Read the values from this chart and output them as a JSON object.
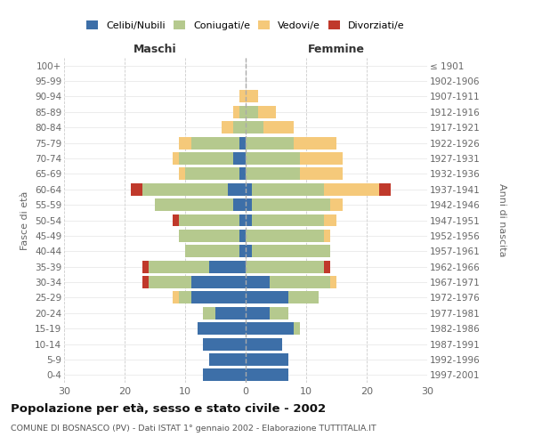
{
  "age_groups": [
    "0-4",
    "5-9",
    "10-14",
    "15-19",
    "20-24",
    "25-29",
    "30-34",
    "35-39",
    "40-44",
    "45-49",
    "50-54",
    "55-59",
    "60-64",
    "65-69",
    "70-74",
    "75-79",
    "80-84",
    "85-89",
    "90-94",
    "95-99",
    "100+"
  ],
  "birth_years": [
    "1997-2001",
    "1992-1996",
    "1987-1991",
    "1982-1986",
    "1977-1981",
    "1972-1976",
    "1967-1971",
    "1962-1966",
    "1957-1961",
    "1952-1956",
    "1947-1951",
    "1942-1946",
    "1937-1941",
    "1932-1936",
    "1927-1931",
    "1922-1926",
    "1917-1921",
    "1912-1916",
    "1907-1911",
    "1902-1906",
    "≤ 1901"
  ],
  "maschi": {
    "celibi": [
      7,
      6,
      7,
      8,
      5,
      9,
      9,
      6,
      1,
      1,
      1,
      2,
      3,
      1,
      2,
      1,
      0,
      0,
      0,
      0,
      0
    ],
    "coniugati": [
      0,
      0,
      0,
      0,
      2,
      2,
      7,
      10,
      9,
      10,
      10,
      13,
      14,
      9,
      9,
      8,
      2,
      1,
      0,
      0,
      0
    ],
    "vedovi": [
      0,
      0,
      0,
      0,
      0,
      1,
      0,
      0,
      0,
      0,
      0,
      0,
      0,
      1,
      1,
      2,
      2,
      1,
      1,
      0,
      0
    ],
    "divorziati": [
      0,
      0,
      0,
      0,
      0,
      0,
      1,
      1,
      0,
      0,
      1,
      0,
      2,
      0,
      0,
      0,
      0,
      0,
      0,
      0,
      0
    ]
  },
  "femmine": {
    "nubili": [
      7,
      7,
      6,
      8,
      4,
      7,
      4,
      0,
      1,
      0,
      1,
      1,
      1,
      0,
      0,
      0,
      0,
      0,
      0,
      0,
      0
    ],
    "coniugate": [
      0,
      0,
      0,
      1,
      3,
      5,
      10,
      13,
      13,
      13,
      12,
      13,
      12,
      9,
      9,
      8,
      3,
      2,
      0,
      0,
      0
    ],
    "vedove": [
      0,
      0,
      0,
      0,
      0,
      0,
      1,
      0,
      0,
      1,
      2,
      2,
      9,
      7,
      7,
      7,
      5,
      3,
      2,
      0,
      0
    ],
    "divorziate": [
      0,
      0,
      0,
      0,
      0,
      0,
      0,
      1,
      0,
      0,
      0,
      0,
      2,
      0,
      0,
      0,
      0,
      0,
      0,
      0,
      0
    ]
  },
  "colors": {
    "celibi": "#3d6fa8",
    "coniugati": "#b5c98e",
    "vedovi": "#f5c97a",
    "divorziati": "#c0392b"
  },
  "xlim": 30,
  "title": "Popolazione per età, sesso e stato civile - 2002",
  "subtitle": "COMUNE DI BOSNASCO (PV) - Dati ISTAT 1° gennaio 2002 - Elaborazione TUTTITALIA.IT",
  "ylabel_left": "Fasce di età",
  "ylabel_right": "Anni di nascita",
  "label_maschi": "Maschi",
  "label_femmine": "Femmine"
}
